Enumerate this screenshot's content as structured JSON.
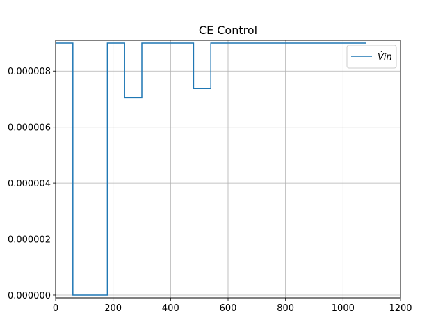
{
  "chart_data": {
    "type": "line",
    "title": "CE Control",
    "xlabel": "",
    "ylabel": "",
    "xlim": [
      0,
      1200
    ],
    "ylim": [
      -1e-07,
      9.1e-06
    ],
    "grid": true,
    "legend_placement": "top-right",
    "x_ticks": [
      0,
      200,
      400,
      600,
      800,
      1000,
      1200
    ],
    "x_tick_labels": [
      "0",
      "200",
      "400",
      "600",
      "800",
      "1000",
      "1200"
    ],
    "y_ticks": [
      0,
      2e-06,
      4e-06,
      6e-06,
      8e-06
    ],
    "y_tick_labels": [
      "0.000000",
      "0.000002",
      "0.000004",
      "0.000006",
      "0.000008"
    ],
    "series": [
      {
        "name": "V̇in",
        "color": "#1f77b4",
        "style": "step",
        "x": [
          0,
          60,
          60,
          180,
          180,
          240,
          240,
          300,
          300,
          480,
          480,
          540,
          540,
          1080
        ],
        "y": [
          9e-06,
          9e-06,
          0.0,
          0.0,
          9e-06,
          9e-06,
          7.05e-06,
          7.05e-06,
          9e-06,
          9e-06,
          7.38e-06,
          7.38e-06,
          9e-06,
          9e-06
        ]
      }
    ]
  }
}
